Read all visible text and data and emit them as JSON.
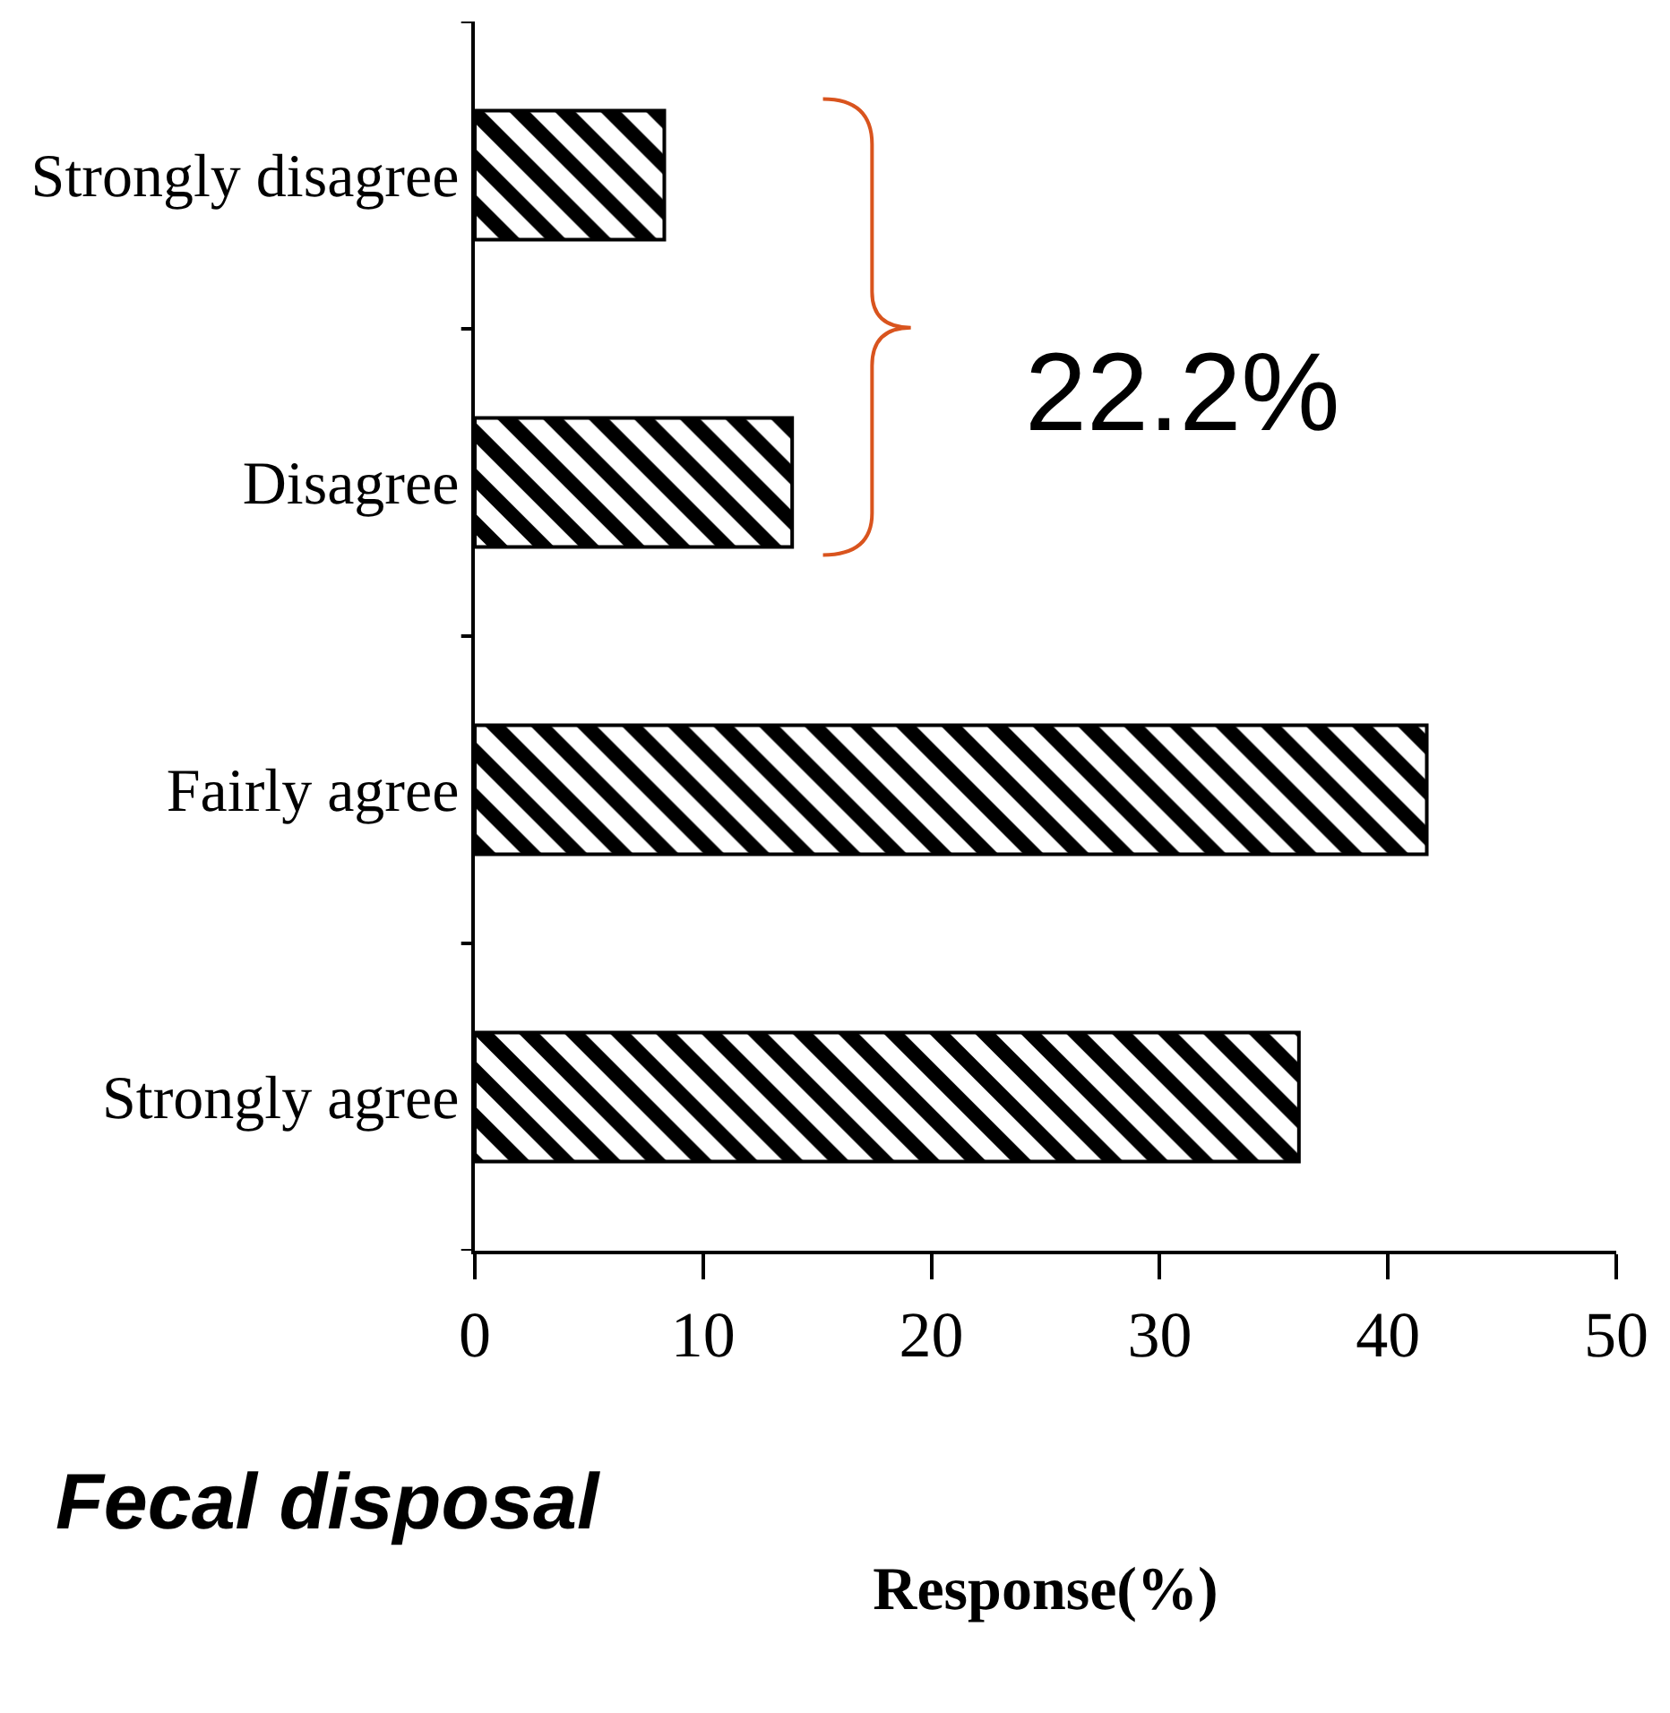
{
  "chart_data": {
    "type": "bar",
    "orientation": "horizontal",
    "title": "Fecal disposal",
    "xlabel": "Response(%)",
    "categories": [
      "Strongly disagree",
      "Disagree",
      "Fairly agree",
      "Strongly agree"
    ],
    "values": [
      8.3,
      13.9,
      41.7,
      36.1
    ],
    "color": "#000000",
    "xlim": [
      0,
      50
    ],
    "xticks": [
      0,
      10,
      20,
      30,
      40,
      50
    ],
    "annotations": [
      "22.2%"
    ]
  }
}
